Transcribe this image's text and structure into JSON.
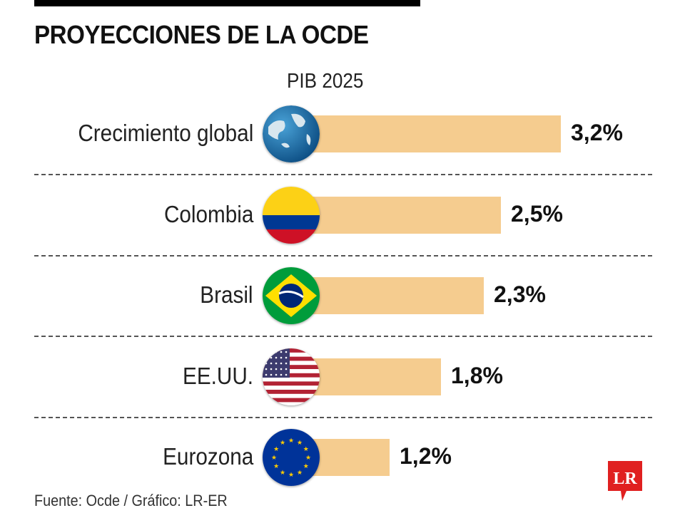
{
  "header": {
    "title": "PROYECCIONES DE LA OCDE",
    "subtitle": "PIB 2025"
  },
  "chart_data": {
    "type": "bar",
    "orientation": "horizontal",
    "title": "PROYECCIONES DE LA OCDE",
    "subtitle": "PIB 2025",
    "categories": [
      "Crecimiento global",
      "Colombia",
      "Brasil",
      "EE.UU.",
      "Eurozona"
    ],
    "values": [
      3.2,
      2.5,
      2.3,
      1.8,
      1.2
    ],
    "value_labels": [
      "3,2%",
      "2,5%",
      "2,3%",
      "1,8%",
      "1,2%"
    ],
    "icons": [
      "globe-icon",
      "colombia-flag-icon",
      "brazil-flag-icon",
      "usa-flag-icon",
      "eu-flag-icon"
    ],
    "bar_color": "#f5cc8f",
    "unit": "%",
    "xlabel": "",
    "ylabel": "",
    "grid": false,
    "legend": "none"
  },
  "footer": {
    "source": "Fuente: Ocde / Gráfico: LR-ER",
    "logo_text": "LR",
    "logo_color": "#e02020"
  }
}
